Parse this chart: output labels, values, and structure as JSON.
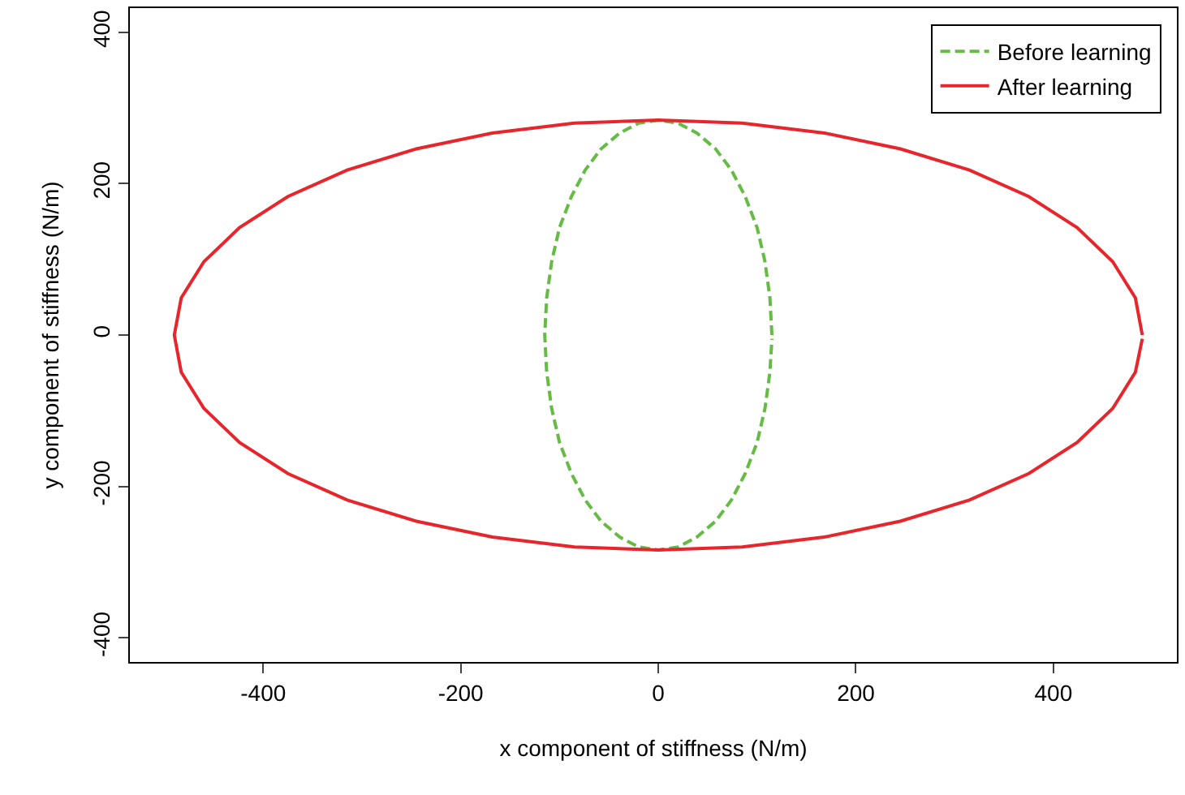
{
  "chart_data": {
    "type": "line",
    "xlabel": "x component of stiffness (N/m)",
    "ylabel": "y component of stiffness (N/m)",
    "xlim": [
      -535,
      525
    ],
    "ylim": [
      -432,
      432
    ],
    "xticks": [
      -400,
      -200,
      0,
      200,
      400
    ],
    "yticks": [
      -400,
      -200,
      0,
      200,
      400
    ],
    "legend": "top right",
    "marker": "none",
    "series": [
      {
        "name": "Before learning",
        "color": "#66bb44",
        "line_style": "dashed",
        "x": [
          115,
          113,
          108,
          100,
          88,
          74,
          58,
          39,
          20,
          0,
          -20,
          -39,
          -58,
          -74,
          -88,
          -100,
          -108,
          -113,
          -115,
          -113,
          -108,
          -100,
          -88,
          -74,
          -58,
          -39,
          -20,
          0,
          20,
          39,
          58,
          74,
          88,
          100,
          108,
          113,
          115
        ],
        "values": [
          0,
          49,
          97,
          142,
          183,
          218,
          246,
          267,
          280,
          284,
          280,
          267,
          246,
          218,
          183,
          142,
          97,
          49,
          0,
          -49,
          -97,
          -142,
          -183,
          -218,
          -246,
          -267,
          -280,
          -284,
          -280,
          -267,
          -246,
          -218,
          -183,
          -142,
          -97,
          -49,
          -5
        ]
      },
      {
        "name": "After learning",
        "color": "#e8252b",
        "line_style": "solid",
        "x": [
          490,
          483,
          460,
          424,
          375,
          315,
          245,
          168,
          85,
          0,
          -85,
          -168,
          -245,
          -315,
          -375,
          -424,
          -460,
          -483,
          -490,
          -483,
          -460,
          -424,
          -375,
          -315,
          -245,
          -168,
          -85,
          0,
          85,
          168,
          245,
          315,
          375,
          424,
          460,
          483,
          490
        ],
        "values": [
          0,
          49,
          97,
          142,
          183,
          218,
          246,
          267,
          280,
          284,
          280,
          267,
          246,
          218,
          183,
          142,
          97,
          49,
          0,
          -49,
          -97,
          -142,
          -183,
          -218,
          -246,
          -267,
          -280,
          -284,
          -280,
          -267,
          -246,
          -218,
          -183,
          -142,
          -97,
          -49,
          -5
        ]
      }
    ]
  }
}
